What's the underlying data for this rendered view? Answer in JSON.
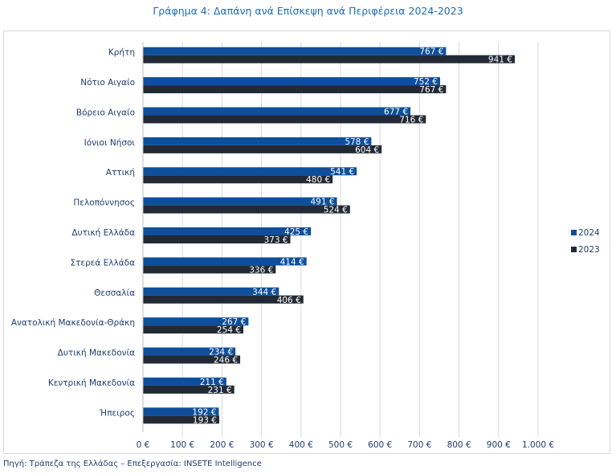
{
  "chart_data": {
    "type": "bar",
    "orientation": "horizontal",
    "title": "Γράφημα 4: Δαπάνη ανά Επίσκεψη ανά Περιφέρεια 2024-2023",
    "categories": [
      "Κρήτη",
      "Νότιο Αιγαίο",
      "Βόρειο Αιγαίο",
      "Ιόνιοι Νήσοι",
      "Αττική",
      "Πελοπόννησος",
      "Δυτική Ελλάδα",
      "Στερεά Ελλάδα",
      "Θεσσαλία",
      "Ανατολική Μακεδονία-Θράκη",
      "Δυτική Μακεδονία",
      "Κεντρική Μακεδονία",
      "Ήπειρος"
    ],
    "series": [
      {
        "name": "2024",
        "color": "#0d4f9c",
        "values": [
          767,
          752,
          677,
          578,
          541,
          491,
          425,
          414,
          344,
          267,
          234,
          211,
          192
        ],
        "labels": [
          "767 €",
          "752 €",
          "677 €",
          "578 €",
          "541 €",
          "491 €",
          "425 €",
          "414 €",
          "344 €",
          "267 €",
          "234 €",
          "211 €",
          "192 €"
        ]
      },
      {
        "name": "2023",
        "color": "#222a36",
        "values": [
          941,
          767,
          716,
          604,
          480,
          524,
          373,
          336,
          406,
          254,
          246,
          231,
          193
        ],
        "labels": [
          "941 €",
          "767 €",
          "716 €",
          "604 €",
          "480 €",
          "524 €",
          "373 €",
          "336 €",
          "406 €",
          "254 €",
          "246 €",
          "231 €",
          "193 €"
        ]
      }
    ],
    "xlim": [
      0,
      1000
    ],
    "xticks": [
      0,
      100,
      200,
      300,
      400,
      500,
      600,
      700,
      800,
      900,
      1000
    ],
    "xtick_labels": [
      "0 €",
      "100 €",
      "200 €",
      "300 €",
      "400 €",
      "500 €",
      "600 €",
      "700 €",
      "800 €",
      "900 €",
      "1.000 €"
    ],
    "xlabel": "",
    "ylabel": "",
    "grid": "vertical",
    "legend": "right",
    "legend_entries": [
      "2024",
      "2023"
    ]
  },
  "source_note": "Πηγή: Τράπεζα της Ελλάδας – Επεξεργασία: INSETE Intelligence"
}
